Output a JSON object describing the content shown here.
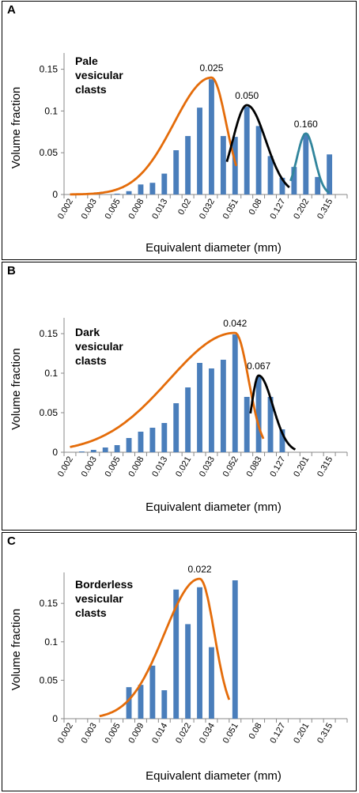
{
  "chart_data": [
    {
      "type": "bar",
      "panel_letter": "A",
      "title": "Pale vesicular clasts",
      "title_lines": [
        "Pale",
        "vesicular",
        "clasts"
      ],
      "xlabel": "Equivalent diameter (mm)",
      "ylabel": "Volume fraction",
      "ylim": [
        0,
        0.16
      ],
      "yticks": [
        "0",
        "0.05",
        "0.1",
        "0.15"
      ],
      "xtick_labels": [
        "0.002",
        "0.003",
        "0.005",
        "0.008",
        "0.013",
        "0.02",
        "0.032",
        "0.051",
        "0.08",
        "0.127",
        "0.202",
        "0.315"
      ],
      "values": [
        0,
        0,
        0,
        0,
        0.001,
        0.004,
        0.012,
        0.014,
        0.025,
        0.053,
        0.07,
        0.104,
        0.138,
        0.07,
        0.069,
        0.105,
        0.082,
        0.046,
        0.02,
        0.033,
        0.073,
        0.021,
        0.048,
        0
      ],
      "fits": [
        {
          "mode": 0.025,
          "label": "0.025",
          "color": "#e46c0a",
          "start": 0.0,
          "end": 14.1,
          "peak_index": 12,
          "peak": 0.14,
          "sigma_left": 3.2,
          "sigma_right": 1.25
        },
        {
          "mode": 0.05,
          "label": "0.050",
          "color": "#000000",
          "start": 13.3,
          "end": 18.6,
          "peak_index": 15,
          "peak": 0.107,
          "sigma_left": 1.2,
          "sigma_right": 1.6
        },
        {
          "mode": 0.16,
          "label": "0.160",
          "color": "#31859c",
          "start": 18.7,
          "end": 22.0,
          "peak_index": 20,
          "peak": 0.073,
          "sigma_left": 0.75,
          "sigma_right": 0.75
        }
      ]
    },
    {
      "type": "bar",
      "panel_letter": "B",
      "title": "Dark vesicular clasts",
      "title_lines": [
        "Dark",
        "vesicular",
        "clasts"
      ],
      "xlabel": "Equivalent diameter (mm)",
      "ylabel": "Volume fraction",
      "ylim": [
        0,
        0.16
      ],
      "yticks": [
        "0",
        "0.05",
        "0.1",
        "0.15"
      ],
      "xtick_labels": [
        "0.002",
        "0.003",
        "0.005",
        "0.008",
        "0.013",
        "0.021",
        "0.033",
        "0.052",
        "0.083",
        "0.127",
        "0.201",
        "0.315"
      ],
      "values": [
        0,
        0.001,
        0.003,
        0.006,
        0.009,
        0.018,
        0.026,
        0.031,
        0.037,
        0.062,
        0.082,
        0.113,
        0.106,
        0.117,
        0.149,
        0.07,
        0.096,
        0.07,
        0.029,
        0,
        0,
        0,
        0,
        0
      ],
      "fits": [
        {
          "mode": 0.042,
          "label": "0.042",
          "color": "#e46c0a",
          "start": 0.0,
          "end": 16.4,
          "peak_index": 14,
          "peak": 0.151,
          "sigma_left": 5.6,
          "sigma_right": 1.15
        },
        {
          "mode": 0.067,
          "label": "0.067",
          "color": "#000000",
          "start": 15.3,
          "end": 19.1,
          "peak_index": 16,
          "peak": 0.097,
          "sigma_left": 0.6,
          "sigma_right": 1.2
        }
      ]
    },
    {
      "type": "bar",
      "panel_letter": "C",
      "title": "Borderless vesicular clasts",
      "title_lines": [
        "Borderless",
        "vesicular",
        "clasts"
      ],
      "xlabel": "Equivalent diameter (mm)",
      "ylabel": "Volume fraction",
      "ylim": [
        0,
        0.18
      ],
      "yticks": [
        "0",
        "0.05",
        "0.1",
        "0.15"
      ],
      "xtick_labels": [
        "0.002",
        "0.003",
        "0.005",
        "0.009",
        "0.014",
        "0.022",
        "0.034",
        "0.051",
        "0.08",
        "0.127",
        "0.201",
        "0.315"
      ],
      "values": [
        0,
        0,
        0,
        0,
        0,
        0.041,
        0.044,
        0.069,
        0.037,
        0.168,
        0.123,
        0.171,
        0.093,
        0,
        0.18,
        0,
        0,
        0,
        0,
        0,
        0,
        0,
        0,
        0
      ],
      "fits": [
        {
          "mode": 0.022,
          "label": "0.022",
          "color": "#e46c0a",
          "start": 2.5,
          "end": 13.5,
          "peak_index": 11,
          "peak": 0.182,
          "sigma_left": 3.0,
          "sigma_right": 1.25
        }
      ]
    }
  ]
}
